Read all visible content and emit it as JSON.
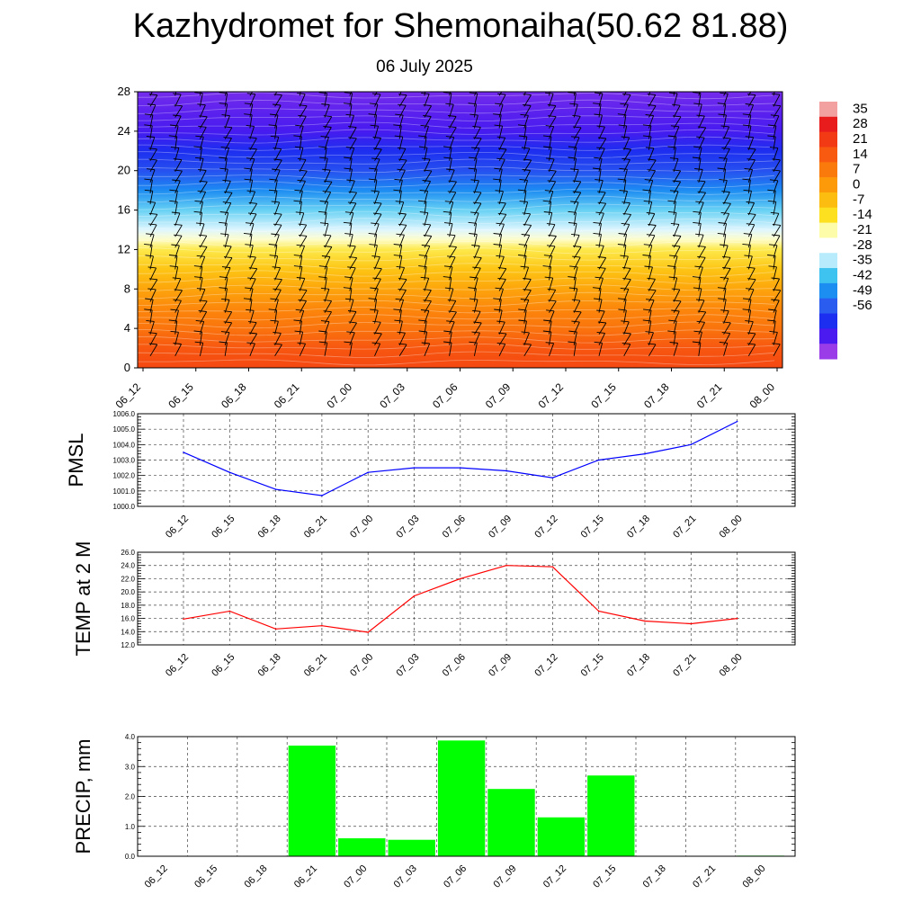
{
  "header": {
    "title": "Kazhydromet for Shemonaiha(50.62 81.88)",
    "subtitle": "06 July 2025"
  },
  "chart_data": [
    {
      "type": "heatmap",
      "title": "",
      "xlabel": "",
      "ylabel": "",
      "x": [
        "06_12",
        "06_15",
        "06_18",
        "06_21",
        "07_00",
        "07_03",
        "07_06",
        "07_09",
        "07_12",
        "07_15",
        "07_18",
        "07_21",
        "08_00"
      ],
      "yticks": [
        0,
        4,
        8,
        12,
        16,
        20,
        24,
        28
      ],
      "ylim": [
        0,
        28
      ],
      "colorbar_labels": [
        "35",
        "28",
        "21",
        "14",
        "7",
        "0",
        "-7",
        "-14",
        "-21",
        "-28",
        "-35",
        "-42",
        "-49",
        "-56"
      ],
      "colorbar_colors": [
        "#f2a0a0",
        "#e81c1c",
        "#f23a14",
        "#f85a10",
        "#fb7a0c",
        "#fd9a0a",
        "#fdbc10",
        "#fde020",
        "#fdfca8",
        "#ffffff",
        "#b8ecfc",
        "#3ec3f0",
        "#1c8ef2",
        "#2a5cf0",
        "#1c2ef0",
        "#4a1af0",
        "#9a3ce8"
      ],
      "field_profile_height_vs_temp": [
        [
          0,
          26
        ],
        [
          2,
          23
        ],
        [
          4,
          17
        ],
        [
          6,
          13
        ],
        [
          8,
          7
        ],
        [
          10,
          1
        ],
        [
          12,
          -6
        ],
        [
          13,
          -13
        ],
        [
          14,
          -20
        ],
        [
          16,
          -28
        ],
        [
          18,
          -37
        ],
        [
          20,
          -45
        ],
        [
          22,
          -50
        ],
        [
          24,
          -56
        ],
        [
          26,
          -58
        ],
        [
          28,
          -60
        ]
      ],
      "wind_barbs": true
    },
    {
      "type": "line",
      "ylabel": "PMSL",
      "categories": [
        "06_12",
        "06_15",
        "06_18",
        "06_21",
        "07_00",
        "07_03",
        "07_06",
        "07_09",
        "07_12",
        "07_15",
        "07_18",
        "07_21",
        "08_00"
      ],
      "values": [
        1003.5,
        1002.2,
        1001.1,
        1000.7,
        1002.2,
        1002.5,
        1002.5,
        1002.3,
        1001.85,
        1003.0,
        1003.4,
        1004.0,
        1005.5
      ],
      "ylim": [
        1000.0,
        1006.0
      ],
      "yticks": [
        "1000.0",
        "1001.0",
        "1002.0",
        "1003.0",
        "1004.0",
        "1005.0",
        "1006.0"
      ],
      "color": "#0000ff",
      "grid": true
    },
    {
      "type": "line",
      "ylabel": "TEMP at 2 M",
      "categories": [
        "06_12",
        "06_15",
        "06_18",
        "06_21",
        "07_00",
        "07_03",
        "07_06",
        "07_09",
        "07_12",
        "07_15",
        "07_18",
        "07_21",
        "08_00"
      ],
      "values": [
        15.9,
        17.1,
        14.4,
        14.9,
        13.9,
        19.4,
        22.0,
        24.0,
        23.8,
        17.1,
        15.6,
        15.2,
        16.0
      ],
      "ylim": [
        12.0,
        26.0
      ],
      "yticks": [
        "12.0",
        "14.0",
        "16.0",
        "18.0",
        "20.0",
        "22.0",
        "24.0",
        "26.0"
      ],
      "color": "#ff0000",
      "grid": true
    },
    {
      "type": "bar",
      "ylabel": "PRECIP, mm",
      "categories": [
        "06_12",
        "06_15",
        "06_18",
        "06_21",
        "07_00",
        "07_03",
        "07_06",
        "07_09",
        "07_12",
        "07_15",
        "07_18",
        "07_21",
        "08_00"
      ],
      "values": [
        0,
        0,
        0,
        3.7,
        0.6,
        0.55,
        3.87,
        2.25,
        1.3,
        2.7,
        0,
        0,
        0.02
      ],
      "ylim": [
        0.0,
        4.0
      ],
      "yticks": [
        "0.0",
        "1.0",
        "2.0",
        "3.0",
        "4.0"
      ],
      "color": "#00ff00",
      "grid": true
    }
  ]
}
